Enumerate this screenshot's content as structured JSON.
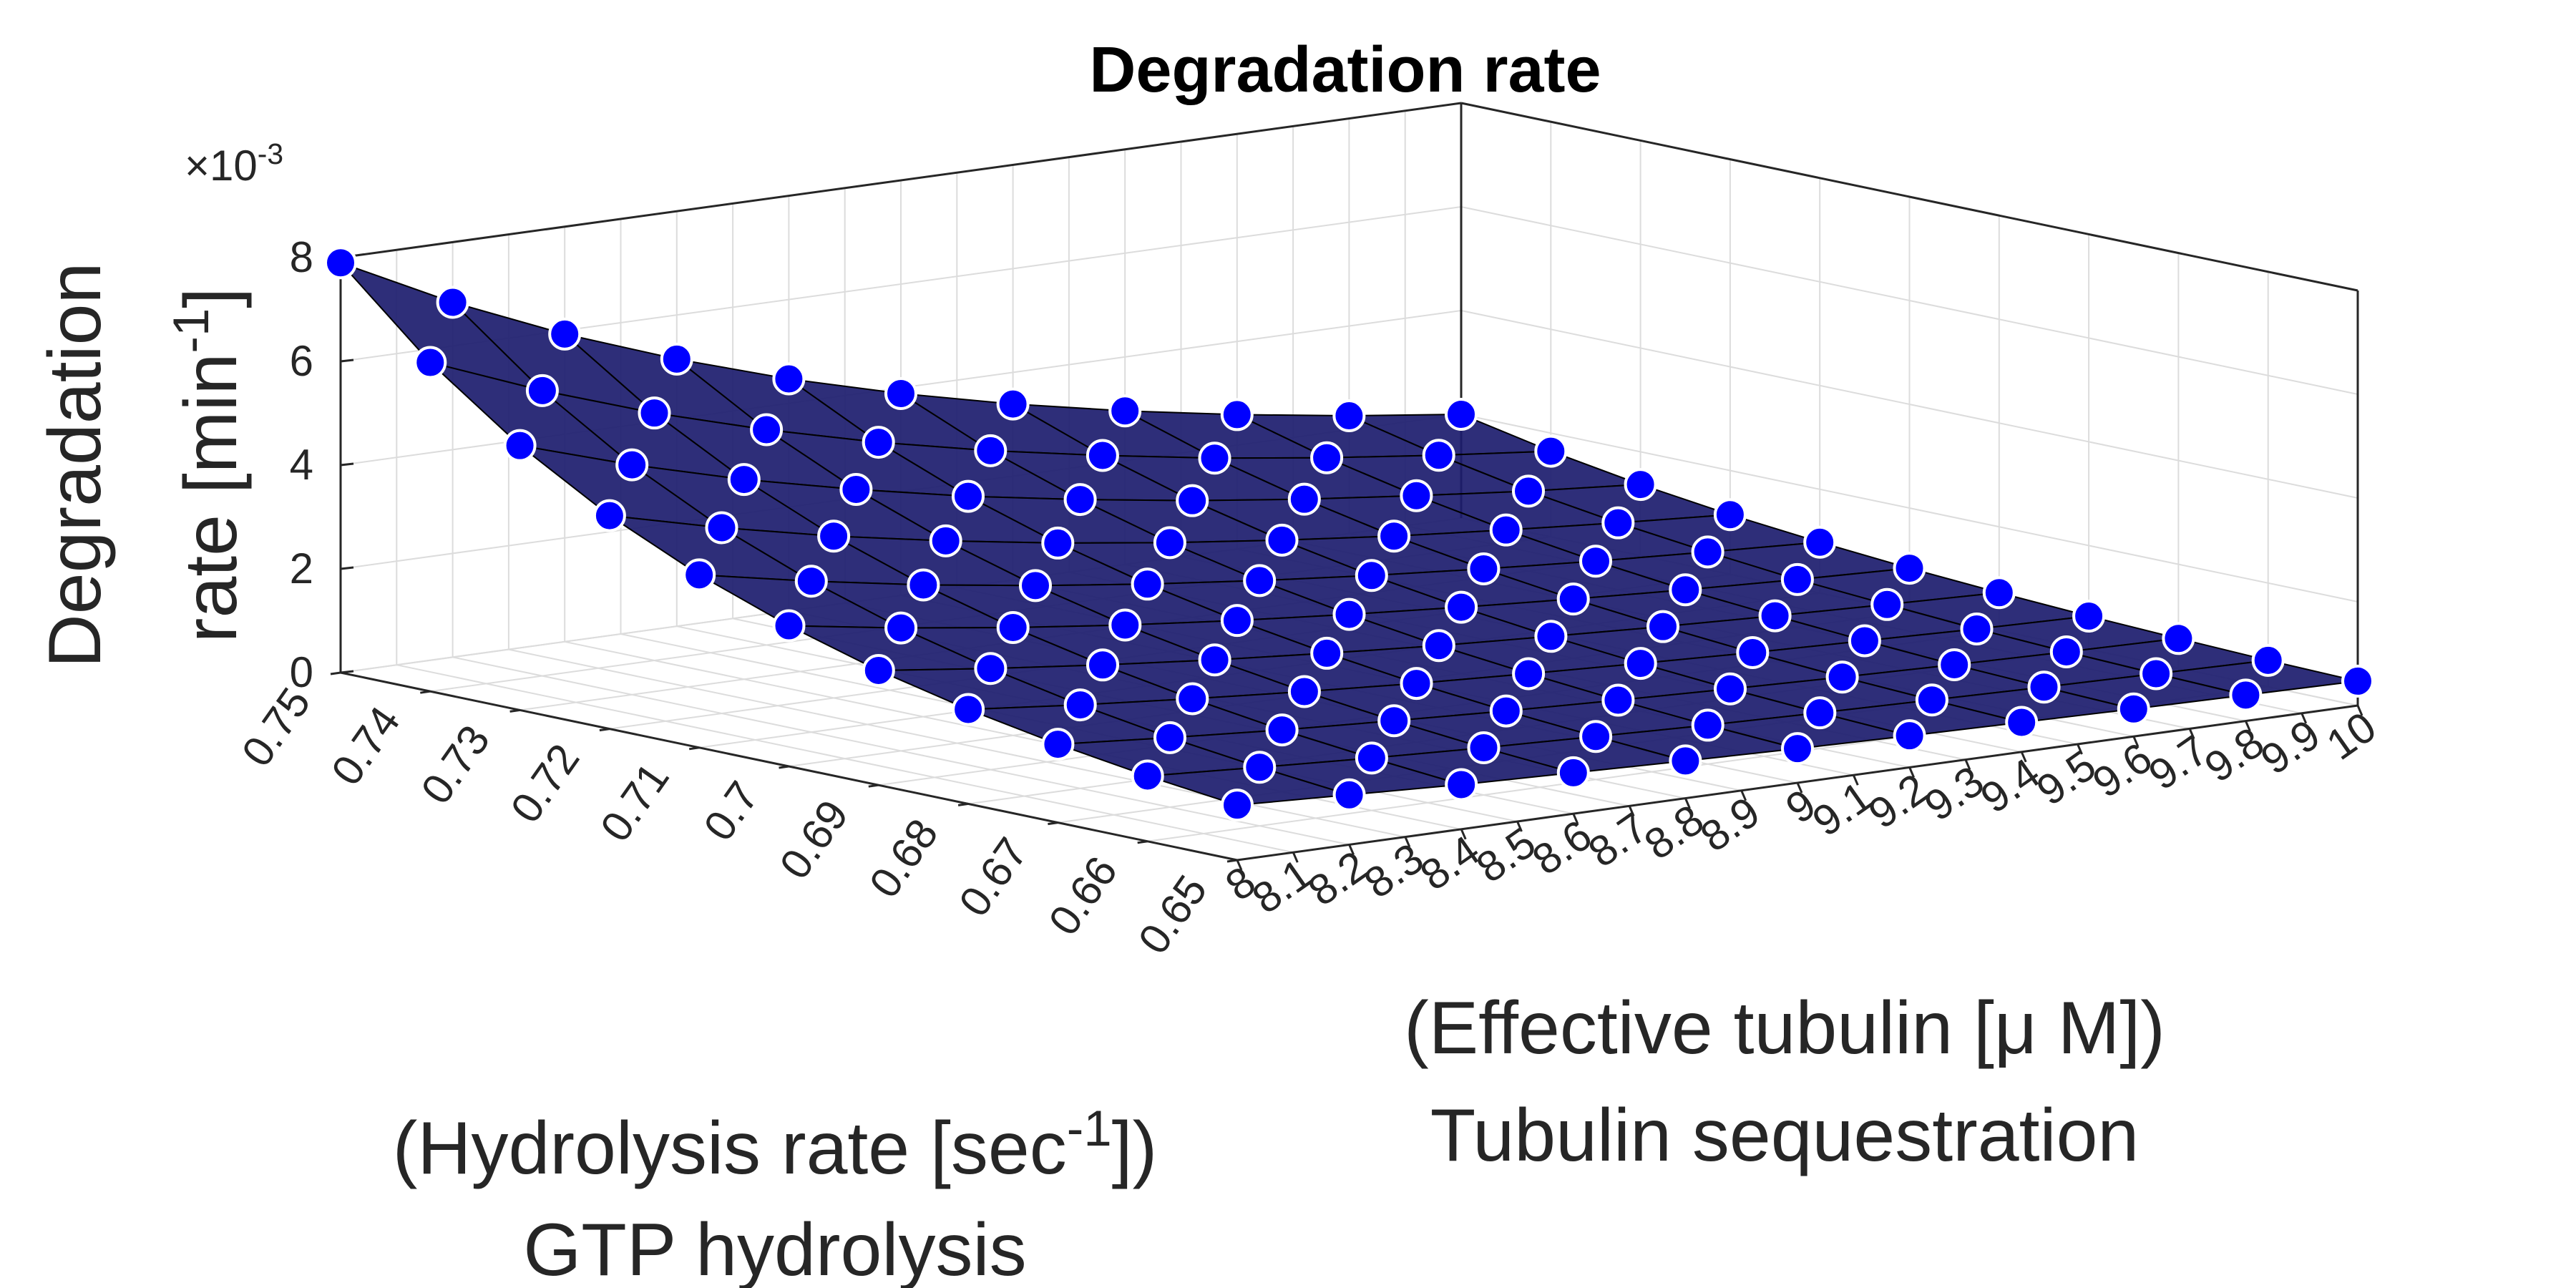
{
  "chart_data": {
    "type": "surface3d",
    "title": "Degradation rate",
    "xlabel": [
      [
        "(Hydrolysis rate [sec",
        "-1",
        "])"
      ],
      [
        "GTP hydrolysis"
      ]
    ],
    "ylabel": [
      [
        "(Effective tubulin [μ M])"
      ],
      [
        "Tubulin sequestration"
      ]
    ],
    "zlabel": [
      [
        "Degradation"
      ],
      [
        "rate [min",
        "-1",
        "]"
      ]
    ],
    "zexponent": [
      "×10",
      "-3"
    ],
    "x": [
      0.65,
      0.66,
      0.67,
      0.68,
      0.69,
      0.7,
      0.71,
      0.72,
      0.73,
      0.74,
      0.75
    ],
    "y": [
      8,
      8.2,
      8.4,
      8.6,
      8.8,
      9,
      9.2,
      9.4,
      9.6,
      9.8,
      10
    ],
    "z": [
      [
        1.06,
        0.96,
        0.86,
        0.79,
        0.72,
        0.66,
        0.61,
        0.57,
        0.53,
        0.5,
        0.47
      ],
      [
        1.26,
        1.13,
        1.01,
        0.91,
        0.83,
        0.75,
        0.69,
        0.64,
        0.59,
        0.55,
        0.51
      ],
      [
        1.51,
        1.34,
        1.19,
        1.07,
        0.96,
        0.87,
        0.79,
        0.72,
        0.66,
        0.61,
        0.57
      ],
      [
        1.82,
        1.61,
        1.43,
        1.27,
        1.13,
        1.02,
        0.92,
        0.83,
        0.76,
        0.69,
        0.64
      ],
      [
        2.21,
        1.95,
        1.72,
        1.52,
        1.35,
        1.2,
        1.08,
        0.97,
        0.88,
        0.8,
        0.73
      ],
      [
        2.71,
        2.37,
        2.08,
        1.83,
        1.62,
        1.44,
        1.28,
        1.14,
        1.02,
        0.92,
        0.84
      ],
      [
        3.33,
        2.91,
        2.54,
        2.23,
        1.96,
        1.73,
        1.53,
        1.36,
        1.21,
        1.09,
        0.98
      ],
      [
        4.11,
        3.58,
        3.12,
        2.73,
        2.39,
        2.1,
        1.85,
        1.63,
        1.45,
        1.29,
        1.15
      ],
      [
        5.1,
        4.43,
        3.85,
        3.36,
        2.93,
        2.57,
        2.25,
        1.98,
        1.75,
        1.54,
        1.37
      ],
      [
        6.34,
        5.5,
        4.77,
        4.15,
        3.61,
        3.15,
        2.76,
        2.41,
        2.12,
        1.87,
        1.65
      ],
      [
        7.9,
        6.84,
        5.93,
        5.15,
        4.47,
        3.89,
        3.39,
        2.96,
        2.59,
        2.27,
        2.0
      ]
    ],
    "xlim": [
      0.65,
      0.75
    ],
    "xticks": [
      0.65,
      0.66,
      0.67,
      0.68,
      0.69,
      0.7,
      0.71,
      0.72,
      0.73,
      0.74,
      0.75
    ],
    "ylim": [
      8,
      10
    ],
    "yticks": [
      8,
      8.1,
      8.2,
      8.3,
      8.4,
      8.5,
      8.6,
      8.7,
      8.8,
      8.9,
      9,
      9.1,
      9.2,
      9.3,
      9.4,
      9.5,
      9.6,
      9.7,
      9.8,
      9.9,
      10
    ],
    "zlim": [
      0,
      8
    ],
    "zticks": [
      0,
      2,
      4,
      6,
      8
    ],
    "grid": true,
    "surface_color": "#1c1c6e",
    "edge_color": "#000000",
    "marker_color": "#0000ff",
    "marker_edge_color": "#ffffff"
  }
}
